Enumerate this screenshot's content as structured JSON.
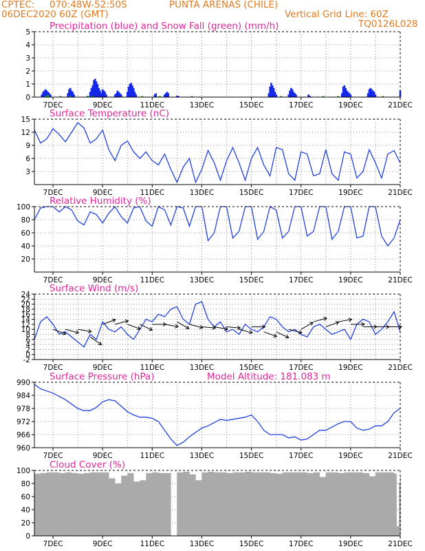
{
  "header": {
    "line1_left": "CPTEC:",
    "line1_coords": "070:48W-52:50S",
    "line1_station": "PUNTA ARENAS (CHILE)",
    "line2_left": "06DEC2020 60Z (GMT)",
    "line2_right": "Vertical Grid Line: 60Z",
    "code": "TQ0126L028"
  },
  "colors": {
    "precip": "#1428e6",
    "snow": "#22aa22",
    "line": "#1f3fe0",
    "wind_arrow": "#000000",
    "cloud": "#aaaaaa",
    "title": "#e0259a",
    "header": "#e07a1f"
  },
  "x_labels": [
    "7DEC",
    "9DEC",
    "11DEC",
    "13DEC",
    "15DEC",
    "17DEC",
    "19DEC",
    "21DEC"
  ],
  "chart_data": [
    {
      "type": "bar",
      "title": "Precipitation (blue) and Snow Fall (green) (mm/h)",
      "ylim": [
        0,
        5
      ],
      "yticks": [
        "5",
        "4",
        "3",
        "2",
        "1",
        "0"
      ],
      "x_range_days": [
        6.25,
        21
      ],
      "series": [
        {
          "name": "Precipitation",
          "x": [
            6.55,
            6.6,
            6.65,
            6.7,
            6.75,
            6.8,
            6.85,
            6.9,
            7.6,
            7.65,
            7.7,
            7.75,
            7.8,
            7.85,
            8.5,
            8.55,
            8.6,
            8.65,
            8.7,
            8.75,
            8.8,
            8.85,
            8.9,
            8.95,
            9.0,
            9.05,
            9.1,
            9.15,
            9.5,
            9.55,
            9.6,
            9.65,
            9.7,
            9.75,
            10.0,
            10.05,
            10.1,
            10.15,
            10.2,
            10.25,
            10.3,
            10.35,
            11.1,
            11.15,
            11.5,
            11.55,
            11.6,
            11.65,
            12.0,
            12.05,
            15.7,
            15.75,
            15.8,
            15.85,
            15.9,
            15.95,
            16.0,
            16.5,
            16.55,
            16.6,
            16.65,
            16.7,
            16.75,
            16.8,
            17.3,
            17.35,
            18.65,
            18.7,
            18.75,
            18.8,
            18.85,
            18.9,
            18.95,
            19.0,
            19.7,
            19.75,
            19.8,
            19.85,
            19.9,
            19.95,
            20.0,
            21.0
          ],
          "values": [
            0.2,
            0.4,
            0.5,
            0.6,
            0.5,
            0.4,
            0.3,
            0.2,
            0.3,
            0.6,
            0.7,
            0.5,
            0.4,
            0.2,
            0.4,
            0.7,
            0.9,
            1.3,
            1.4,
            1.2,
            1.0,
            0.7,
            0.5,
            0.3,
            0.6,
            0.5,
            0.4,
            0.2,
            0.2,
            0.3,
            0.5,
            0.4,
            0.3,
            0.2,
            0.4,
            0.8,
            1.0,
            1.1,
            0.9,
            0.7,
            0.4,
            0.2,
            0.2,
            0.3,
            0.2,
            0.3,
            0.4,
            0.3,
            0.1,
            0.1,
            0.3,
            0.8,
            1.1,
            0.9,
            0.7,
            0.4,
            0.2,
            0.2,
            0.5,
            0.7,
            0.6,
            0.4,
            0.3,
            0.2,
            0.2,
            0.1,
            0.3,
            0.8,
            0.9,
            0.7,
            0.5,
            0.4,
            0.3,
            0.2,
            0.3,
            0.6,
            0.7,
            0.6,
            0.5,
            0.4,
            0.2,
            0.5
          ]
        },
        {
          "name": "Snow Fall",
          "x": [
            6.7,
            6.8,
            7.3,
            7.7,
            8.4,
            8.6,
            10.6,
            11.3,
            12.6,
            16.2,
            17.9,
            18.5,
            20.3
          ],
          "values": [
            0.1,
            0.15,
            0.05,
            0.1,
            0.1,
            0.05,
            0.05,
            0.05,
            0.05,
            0.05,
            0.05,
            0.05,
            0.05
          ]
        }
      ]
    },
    {
      "type": "line",
      "title": "Surface Temperature (nC)",
      "ylim": [
        0,
        15
      ],
      "yticks": [
        "15",
        "12",
        "9",
        "6",
        "3"
      ],
      "x": [
        6.25,
        6.5,
        6.75,
        7.0,
        7.25,
        7.5,
        7.75,
        8.0,
        8.25,
        8.5,
        8.75,
        9.0,
        9.25,
        9.5,
        9.75,
        10.0,
        10.25,
        10.5,
        10.75,
        11.0,
        11.25,
        11.5,
        11.75,
        12.0,
        12.25,
        12.5,
        12.75,
        13.0,
        13.25,
        13.5,
        13.75,
        14.0,
        14.25,
        14.5,
        14.75,
        15.0,
        15.25,
        15.5,
        15.75,
        16.0,
        16.25,
        16.5,
        16.75,
        17.0,
        17.25,
        17.5,
        17.75,
        18.0,
        18.25,
        18.5,
        18.75,
        19.0,
        19.25,
        19.5,
        19.75,
        20.0,
        20.25,
        20.5,
        20.75,
        21.0
      ],
      "values": [
        12.5,
        9.5,
        10.5,
        12.8,
        11.5,
        9.8,
        12.0,
        14.2,
        13.0,
        9.5,
        10.5,
        12.5,
        8.0,
        5.5,
        9.0,
        10.0,
        7.5,
        6.0,
        7.5,
        5.5,
        4.5,
        7.0,
        3.5,
        0.5,
        4.0,
        6.0,
        0.5,
        3.5,
        7.8,
        5.0,
        1.0,
        5.5,
        8.5,
        5.0,
        1.0,
        6.0,
        8.5,
        4.5,
        2.0,
        8.5,
        8.0,
        2.5,
        1.0,
        7.5,
        7.0,
        2.0,
        2.5,
        8.0,
        2.5,
        1.0,
        7.5,
        7.0,
        1.5,
        3.0,
        8.0,
        5.0,
        1.5,
        7.0,
        7.8,
        5.0
      ]
    },
    {
      "type": "line",
      "title": "Relative Humidity (%)",
      "ylim": [
        0,
        100
      ],
      "yticks": [
        "100",
        "80",
        "60",
        "40",
        "20"
      ],
      "x": [
        6.25,
        6.5,
        6.75,
        7.0,
        7.25,
        7.5,
        7.75,
        8.0,
        8.25,
        8.5,
        8.75,
        9.0,
        9.25,
        9.5,
        9.75,
        10.0,
        10.25,
        10.5,
        10.75,
        11.0,
        11.25,
        11.5,
        11.75,
        12.0,
        12.25,
        12.5,
        12.75,
        13.0,
        13.25,
        13.5,
        13.75,
        14.0,
        14.25,
        14.5,
        14.75,
        15.0,
        15.25,
        15.5,
        15.75,
        16.0,
        16.25,
        16.5,
        16.75,
        17.0,
        17.25,
        17.5,
        17.75,
        18.0,
        18.25,
        18.5,
        18.75,
        19.0,
        19.25,
        19.5,
        19.75,
        20.0,
        20.25,
        20.5,
        20.75,
        21.0
      ],
      "values": [
        80,
        98,
        100,
        100,
        92,
        100,
        95,
        78,
        72,
        92,
        88,
        75,
        90,
        100,
        85,
        75,
        98,
        100,
        78,
        70,
        100,
        95,
        72,
        100,
        98,
        70,
        100,
        100,
        48,
        60,
        100,
        100,
        52,
        62,
        100,
        100,
        50,
        62,
        100,
        95,
        52,
        62,
        100,
        100,
        55,
        62,
        100,
        100,
        50,
        62,
        100,
        100,
        52,
        55,
        100,
        100,
        55,
        40,
        52,
        80
      ]
    },
    {
      "type": "line",
      "title": "Surface Wind (m/s)",
      "ylim": [
        -2,
        24
      ],
      "yticks": [
        "24",
        "22",
        "20",
        "18",
        "16",
        "14",
        "12",
        "10",
        "8",
        "6",
        "4",
        "2",
        "0",
        "-2"
      ],
      "x": [
        6.25,
        6.5,
        6.75,
        7.0,
        7.25,
        7.5,
        7.75,
        8.0,
        8.25,
        8.5,
        8.75,
        9.0,
        9.25,
        9.5,
        9.75,
        10.0,
        10.25,
        10.5,
        10.75,
        11.0,
        11.25,
        11.5,
        11.75,
        12.0,
        12.25,
        12.5,
        12.75,
        13.0,
        13.25,
        13.5,
        13.75,
        14.0,
        14.25,
        14.5,
        14.75,
        15.0,
        15.25,
        15.5,
        15.75,
        16.0,
        16.25,
        16.5,
        16.75,
        17.0,
        17.25,
        17.5,
        17.75,
        18.0,
        18.25,
        18.5,
        18.75,
        19.0,
        19.25,
        19.5,
        19.75,
        20.0,
        20.25,
        20.5,
        20.75,
        21.0
      ],
      "values": [
        6,
        13,
        15,
        12,
        8,
        9,
        7,
        5,
        3,
        8,
        6,
        13,
        10,
        9,
        11,
        8,
        6,
        10,
        14,
        13,
        16,
        15,
        18,
        19,
        14,
        12,
        20,
        21,
        14,
        11,
        13,
        9,
        10,
        8,
        12,
        10,
        9,
        11,
        15,
        14,
        11,
        9,
        10,
        8,
        7,
        11,
        12,
        10,
        8,
        9,
        10,
        6,
        12,
        14,
        13,
        8,
        10,
        13,
        17,
        9
      ],
      "arrows": {
        "days": [
          7.0,
          7.5,
          8.0,
          8.5,
          9.0,
          9.5,
          10.0,
          10.5,
          11.0,
          11.5,
          12.0,
          12.5,
          13.0,
          13.5,
          14.0,
          14.5,
          15.0,
          15.5,
          16.0,
          16.5,
          17.0,
          17.5,
          18.0,
          18.5,
          19.0,
          19.5,
          20.0,
          20.5
        ],
        "speeds": [
          10,
          10,
          10,
          7,
          12,
          12,
          12,
          12,
          12,
          12,
          13,
          12,
          11,
          11,
          11,
          10,
          11,
          9,
          9,
          10,
          10,
          13,
          11,
          13,
          12,
          11,
          11,
          11
        ]
      }
    },
    {
      "type": "line",
      "title": "Surface Pressure (hPa)",
      "annotation": "Model Altitude: 181.083 m",
      "ylim": [
        960,
        990
      ],
      "yticks": [
        "990",
        "984",
        "978",
        "972",
        "966",
        "960"
      ],
      "x": [
        6.25,
        6.5,
        6.75,
        7.0,
        7.25,
        7.5,
        7.75,
        8.0,
        8.25,
        8.5,
        8.75,
        9.0,
        9.25,
        9.5,
        9.75,
        10.0,
        10.25,
        10.5,
        10.75,
        11.0,
        11.25,
        11.5,
        11.75,
        12.0,
        12.25,
        12.5,
        12.75,
        13.0,
        13.25,
        13.5,
        13.75,
        14.0,
        14.25,
        14.5,
        14.75,
        15.0,
        15.25,
        15.5,
        15.75,
        16.0,
        16.25,
        16.5,
        16.75,
        17.0,
        17.25,
        17.5,
        17.75,
        18.0,
        18.25,
        18.5,
        18.75,
        19.0,
        19.25,
        19.5,
        19.75,
        20.0,
        20.25,
        20.5,
        20.75,
        21.0
      ],
      "values": [
        989,
        987,
        986,
        985,
        983.5,
        982,
        980,
        978,
        977,
        977,
        978.5,
        981,
        982,
        981.5,
        979,
        976.5,
        975,
        974,
        974,
        973.5,
        972,
        968,
        964,
        961,
        962.5,
        965,
        967,
        969,
        970,
        971.5,
        973,
        972.5,
        973,
        973.5,
        974,
        975,
        972,
        968,
        966,
        966,
        966,
        964.5,
        965,
        963.5,
        964,
        966,
        968,
        968,
        969.5,
        971,
        972,
        972,
        969,
        968,
        968.5,
        970,
        970,
        972,
        976,
        978
      ]
    },
    {
      "type": "bar",
      "title": "Cloud Cover (%)",
      "ylim": [
        0,
        100
      ],
      "yticks": [
        "100",
        "80",
        "60",
        "40",
        "20",
        "0"
      ],
      "x_range_days": [
        6.25,
        21
      ],
      "note": "Nearly overcast (about 85-98%) throughout, with short dips near 9DEC, 11-12DEC, 13DEC and a sharp drop near 21DEC",
      "x": [
        6.25,
        6.5,
        6.75,
        7.0,
        7.25,
        7.5,
        7.75,
        8.0,
        8.25,
        8.5,
        8.75,
        9.0,
        9.25,
        9.5,
        9.75,
        10.0,
        10.25,
        10.5,
        10.75,
        11.0,
        11.25,
        11.5,
        11.75,
        12.0,
        12.25,
        12.5,
        12.75,
        13.0,
        13.25,
        13.5,
        13.75,
        14.0,
        14.25,
        14.5,
        14.75,
        15.0,
        15.25,
        15.5,
        15.75,
        16.0,
        16.25,
        16.5,
        16.75,
        17.0,
        17.25,
        17.5,
        17.75,
        18.0,
        18.25,
        18.5,
        18.75,
        19.0,
        19.25,
        19.5,
        19.75,
        20.0,
        20.25,
        20.5,
        20.75,
        20.85,
        20.95,
        21.0
      ],
      "values": [
        95,
        96,
        97,
        97,
        96,
        97,
        96,
        95,
        96,
        97,
        97,
        97,
        88,
        80,
        92,
        96,
        83,
        85,
        96,
        97,
        96,
        96,
        0,
        97,
        98,
        94,
        85,
        97,
        98,
        97,
        97,
        96,
        97,
        97,
        98,
        97,
        97,
        97,
        96,
        95,
        97,
        97,
        97,
        97,
        96,
        97,
        90,
        97,
        97,
        96,
        97,
        97,
        97,
        96,
        91,
        97,
        97,
        97,
        95,
        15,
        82,
        92
      ]
    }
  ]
}
